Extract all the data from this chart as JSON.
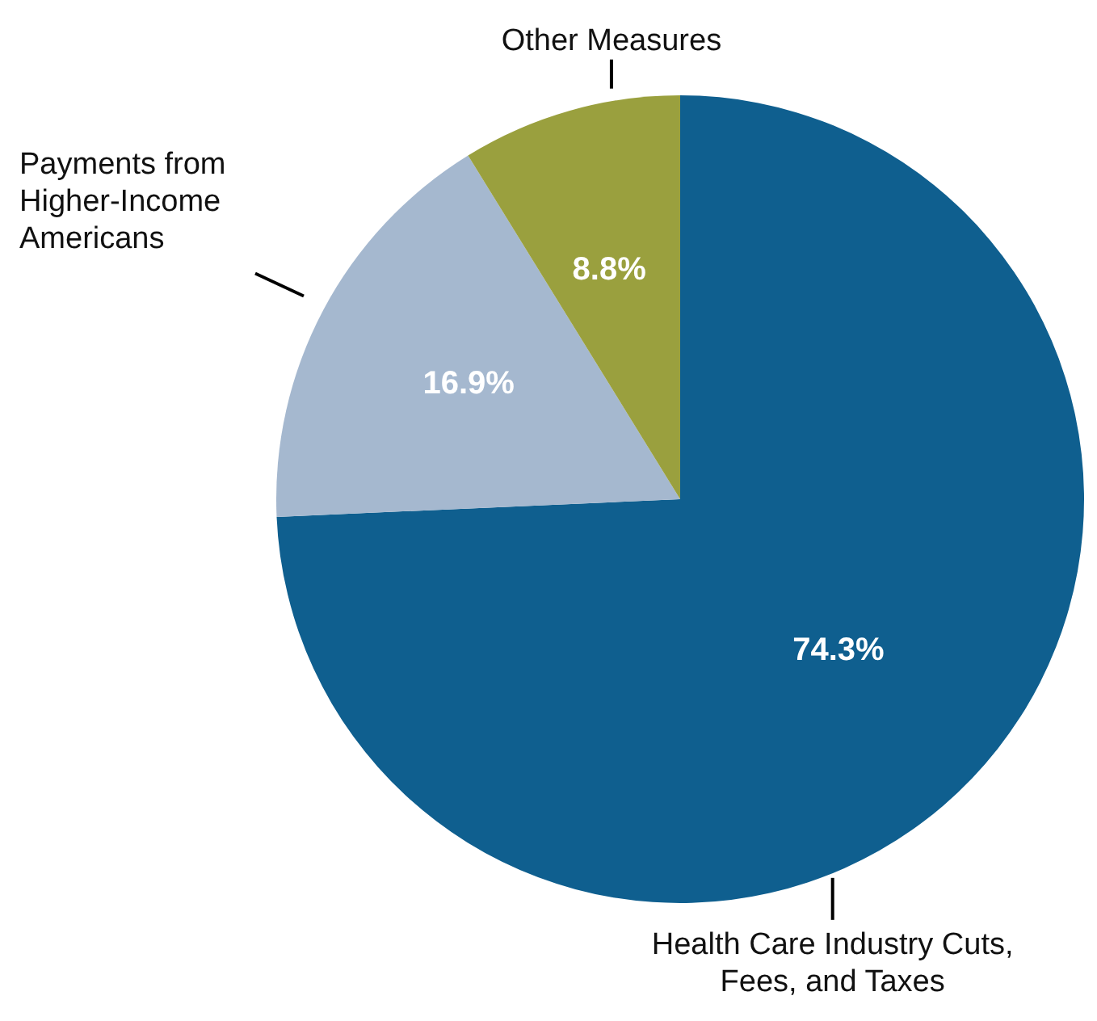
{
  "chart_data": {
    "type": "pie",
    "categories": [
      "Health Care Industry Cuts, Fees, and Taxes",
      "Payments from Higher-Income Americans",
      "Other Measures"
    ],
    "values": [
      74.3,
      16.9,
      8.8
    ],
    "colors": [
      "#0f5f8f",
      "#a5b8cf",
      "#9aa03e"
    ],
    "value_labels": [
      "74.3%",
      "16.9%",
      "8.8%"
    ]
  }
}
